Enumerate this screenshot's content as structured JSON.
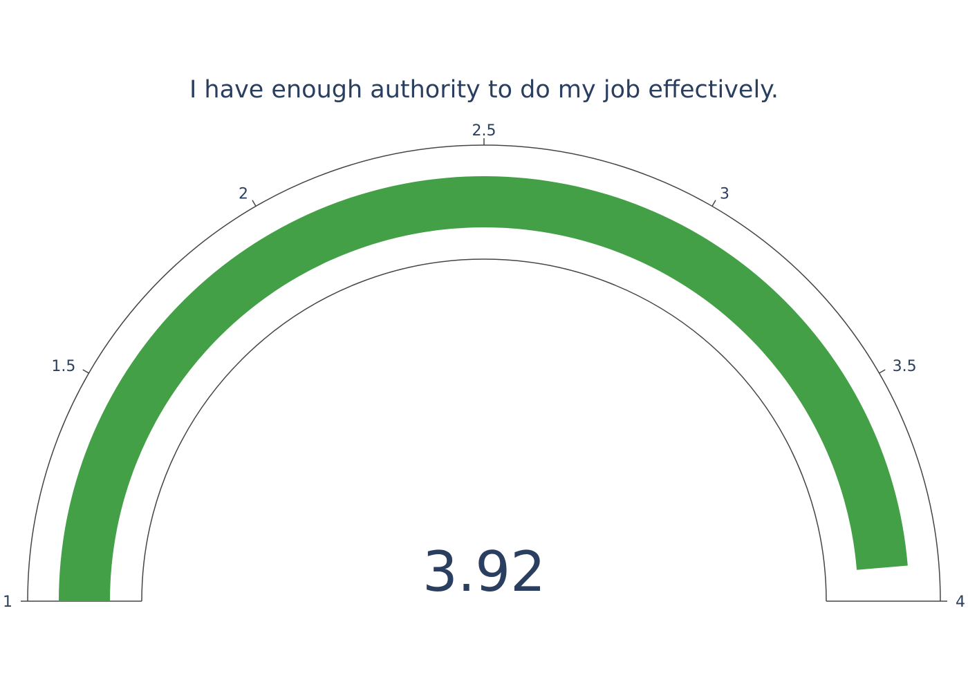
{
  "chart_data": {
    "type": "gauge",
    "title": "I have enough authority to do my job effectively.",
    "value": 3.92,
    "value_label": "3.92",
    "range": [
      1,
      4
    ],
    "ticks": [
      1,
      1.5,
      2,
      2.5,
      3,
      3.5,
      4
    ],
    "tick_labels": [
      "1",
      "1.5",
      "2",
      "2.5",
      "3",
      "3.5",
      "4"
    ],
    "bar_color": "#43a047",
    "outline_color": "#444444",
    "text_color": "#2a3f5f"
  }
}
